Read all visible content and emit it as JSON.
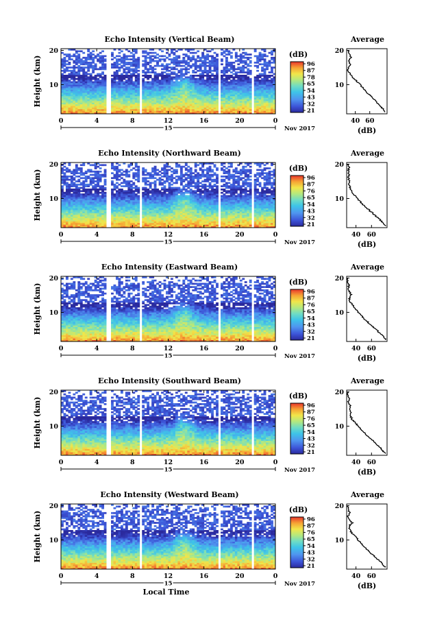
{
  "chart_data": [
    {
      "type": "heatmap",
      "title": "Echo Intensity (Vertical Beam)",
      "ylabel": "Height (km)",
      "xlim": [
        0,
        24
      ],
      "ylim": [
        1.5,
        20.5
      ],
      "x_ticks": [
        "0",
        "4",
        "8",
        "12",
        "16",
        "20",
        "0"
      ],
      "y_ticks": [
        "20",
        "10"
      ],
      "date_label": "15",
      "month_label": "Nov 2017",
      "colorbar": {
        "label": "(dB)",
        "ticks": [
          "96",
          "87",
          "78",
          "65",
          "54",
          "43",
          "32",
          "21"
        ]
      },
      "data_gaps_hours": [
        [
          0.7,
          0.9
        ],
        [
          1.0,
          1.2
        ],
        [
          5.1,
          5.3
        ],
        [
          5.4,
          5.6
        ],
        [
          8.8,
          9.1
        ],
        [
          17.7,
          17.9
        ],
        [
          21.4,
          21.7
        ]
      ],
      "average_profile": {
        "title": "Average",
        "xlabel": "(dB)",
        "x_ticks": [
          "40",
          "60"
        ],
        "y_ticks": [
          "20",
          "10"
        ],
        "xlim": [
          28,
          84
        ],
        "heights": [
          2,
          3,
          4,
          5,
          6,
          7,
          8,
          9,
          10,
          11,
          12,
          13,
          14,
          15,
          16,
          17,
          18,
          19,
          20
        ],
        "values": [
          82,
          78,
          74,
          69,
          65,
          60,
          55,
          51,
          47,
          42,
          37,
          33,
          30,
          31,
          33,
          31,
          34,
          32,
          30
        ]
      }
    },
    {
      "type": "heatmap",
      "title": "Echo Intensity (Northward Beam)",
      "ylabel": "Height (km)",
      "xlim": [
        0,
        24
      ],
      "ylim": [
        1.5,
        20.5
      ],
      "x_ticks": [
        "0",
        "4",
        "8",
        "12",
        "16",
        "20",
        "0"
      ],
      "y_ticks": [
        "20",
        "10"
      ],
      "date_label": "15",
      "month_label": "Nov 2017",
      "colorbar": {
        "label": "(dB)",
        "ticks": [
          "96",
          "87",
          "76",
          "65",
          "54",
          "43",
          "32",
          "21"
        ]
      },
      "data_gaps_hours": [
        [
          0.7,
          0.9
        ],
        [
          1.0,
          1.2
        ],
        [
          5.1,
          5.3
        ],
        [
          5.4,
          5.6
        ],
        [
          8.8,
          9.1
        ],
        [
          17.7,
          17.9
        ],
        [
          21.4,
          21.7
        ]
      ],
      "average_profile": {
        "title": "Average",
        "xlabel": "(dB)",
        "x_ticks": [
          "40",
          "60"
        ],
        "y_ticks": [
          "20",
          "10"
        ],
        "xlim": [
          28,
          80
        ],
        "heights": [
          2,
          3,
          4,
          5,
          6,
          7,
          8,
          9,
          10,
          11,
          12,
          13,
          14,
          15,
          16,
          17,
          18,
          19,
          20
        ],
        "values": [
          78,
          74,
          70,
          65,
          60,
          55,
          50,
          46,
          42,
          38,
          35,
          33,
          31,
          32,
          30,
          31,
          30,
          31,
          29
        ]
      }
    },
    {
      "type": "heatmap",
      "title": "Echo Intensity (Eastward Beam)",
      "ylabel": "Height (km)",
      "xlim": [
        0,
        24
      ],
      "ylim": [
        1.5,
        20.5
      ],
      "x_ticks": [
        "0",
        "4",
        "8",
        "12",
        "16",
        "20",
        "0"
      ],
      "y_ticks": [
        "20",
        "10"
      ],
      "date_label": "15",
      "month_label": "Nov 2017",
      "colorbar": {
        "label": "(dB)",
        "ticks": [
          "96",
          "87",
          "76",
          "65",
          "54",
          "43",
          "32",
          "21"
        ]
      },
      "data_gaps_hours": [
        [
          0.7,
          0.9
        ],
        [
          1.0,
          1.2
        ],
        [
          5.1,
          5.3
        ],
        [
          5.4,
          5.6
        ],
        [
          8.8,
          9.1
        ],
        [
          17.7,
          17.9
        ],
        [
          21.4,
          21.7
        ]
      ],
      "average_profile": {
        "title": "Average",
        "xlabel": "(dB)",
        "x_ticks": [
          "40",
          "60"
        ],
        "y_ticks": [
          "20",
          "10"
        ],
        "xlim": [
          28,
          80
        ],
        "heights": [
          2,
          3,
          4,
          5,
          6,
          7,
          8,
          9,
          10,
          11,
          12,
          13,
          14,
          15,
          16,
          17,
          18,
          19,
          20
        ],
        "values": [
          78,
          75,
          70,
          66,
          61,
          56,
          51,
          47,
          43,
          39,
          36,
          33,
          31,
          34,
          32,
          30,
          31,
          30,
          29
        ]
      }
    },
    {
      "type": "heatmap",
      "title": "Echo Intensity (Southward Beam)",
      "ylabel": "Height (km)",
      "xlim": [
        0,
        24
      ],
      "ylim": [
        1.5,
        20.5
      ],
      "x_ticks": [
        "0",
        "4",
        "8",
        "12",
        "16",
        "20",
        "0"
      ],
      "y_ticks": [
        "20",
        "10"
      ],
      "date_label": "15",
      "month_label": "Nov 2017",
      "colorbar": {
        "label": "(dB)",
        "ticks": [
          "96",
          "87",
          "76",
          "65",
          "54",
          "43",
          "32",
          "21"
        ]
      },
      "data_gaps_hours": [
        [
          0.7,
          0.9
        ],
        [
          1.0,
          1.2
        ],
        [
          5.1,
          5.3
        ],
        [
          5.4,
          5.6
        ],
        [
          8.8,
          9.1
        ],
        [
          17.7,
          17.9
        ],
        [
          21.4,
          21.7
        ]
      ],
      "average_profile": {
        "title": "Average",
        "xlabel": "(dB)",
        "x_ticks": [
          "40",
          "60"
        ],
        "y_ticks": [
          "20",
          "10"
        ],
        "xlim": [
          28,
          80
        ],
        "heights": [
          2,
          3,
          4,
          5,
          6,
          7,
          8,
          9,
          10,
          11,
          12,
          13,
          14,
          15,
          16,
          17,
          18,
          19,
          20
        ],
        "values": [
          78,
          74,
          70,
          66,
          61,
          56,
          51,
          47,
          43,
          39,
          35,
          33,
          34,
          31,
          33,
          30,
          32,
          30,
          29
        ]
      }
    },
    {
      "type": "heatmap",
      "title": "Echo Intensity (Westward Beam)",
      "ylabel": "Height (km)",
      "xlabel": "Local Time",
      "xlim": [
        0,
        24
      ],
      "ylim": [
        1.5,
        20.5
      ],
      "x_ticks": [
        "0",
        "4",
        "8",
        "12",
        "16",
        "20",
        "0"
      ],
      "y_ticks": [
        "20",
        "10"
      ],
      "date_label": "15",
      "month_label": "Nov 2017",
      "colorbar": {
        "label": "(dB)",
        "ticks": [
          "96",
          "87",
          "76",
          "65",
          "54",
          "43",
          "32",
          "21"
        ]
      },
      "data_gaps_hours": [
        [
          0.7,
          0.9
        ],
        [
          1.0,
          1.2
        ],
        [
          5.1,
          5.3
        ],
        [
          5.4,
          5.6
        ],
        [
          8.8,
          9.1
        ],
        [
          17.7,
          17.9
        ],
        [
          21.4,
          21.7
        ]
      ],
      "average_profile": {
        "title": "Average",
        "xlabel": "(dB)",
        "x_ticks": [
          "40",
          "60"
        ],
        "y_ticks": [
          "20",
          "10"
        ],
        "xlim": [
          28,
          80
        ],
        "heights": [
          2,
          3,
          4,
          5,
          6,
          7,
          8,
          9,
          10,
          11,
          12,
          13,
          14,
          15,
          16,
          17,
          18,
          19,
          20
        ],
        "values": [
          78,
          74,
          70,
          65,
          60,
          55,
          51,
          47,
          43,
          39,
          35,
          32,
          31,
          35,
          31,
          30,
          32,
          30,
          29
        ]
      }
    }
  ]
}
